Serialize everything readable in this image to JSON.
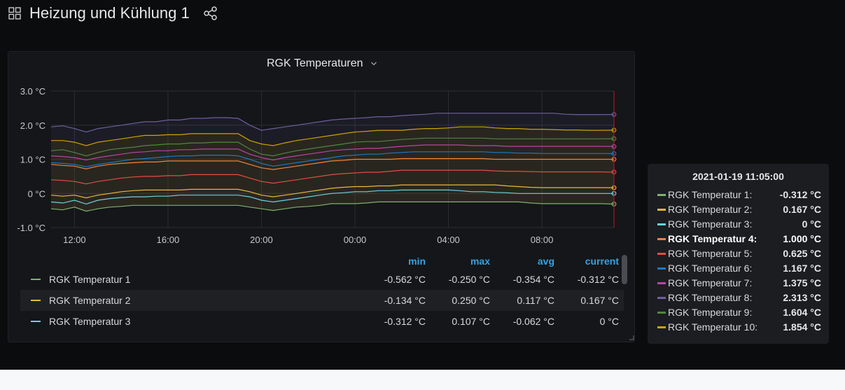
{
  "dashboard": {
    "title": "Heizung und Kühlung 1",
    "icons": {
      "grid": "dashboard-grid-icon",
      "share": "share-icon"
    }
  },
  "panel": {
    "title": "RGK Temperaturen",
    "caret_icon": "chevron-down-icon"
  },
  "chart_data": {
    "type": "line",
    "title": "RGK Temperaturen",
    "xlabel": "",
    "ylabel": "",
    "x_ticks": [
      "12:00",
      "16:00",
      "20:00",
      "00:00",
      "04:00",
      "08:00"
    ],
    "y_ticks": [
      "3.0 °C",
      "2.0 °C",
      "1.0 °C",
      "0 °C",
      "-1.0 °C"
    ],
    "ylim": [
      -1.0,
      3.0
    ],
    "x_hours": [
      -1,
      -0.5,
      0,
      0.5,
      1,
      1.5,
      2,
      2.5,
      3,
      3.5,
      4,
      4.5,
      5,
      5.5,
      6,
      6.5,
      7,
      7.5,
      8,
      8.5,
      9,
      9.5,
      10,
      10.5,
      11,
      11.5,
      12,
      12.5,
      13,
      13.5,
      14,
      14.5,
      15,
      15.5,
      16,
      16.5,
      17,
      17.5,
      18,
      18.5,
      19,
      19.5,
      20,
      20.5,
      21,
      21.5,
      22,
      22.5,
      23.083
    ],
    "grid": true,
    "legend": "bottom",
    "fill_between": [
      "RGK Temperatur 1",
      "RGK Temperatur 10"
    ],
    "series": [
      {
        "name": "RGK Temperatur 1",
        "color": "#7eb26d",
        "min": "-0.562 °C",
        "max": "-0.250 °C",
        "avg": "-0.354 °C",
        "current": "-0.312 °C",
        "values": [
          -0.45,
          -0.48,
          -0.4,
          -0.52,
          -0.45,
          -0.4,
          -0.38,
          -0.35,
          -0.35,
          -0.35,
          -0.35,
          -0.35,
          -0.35,
          -0.35,
          -0.35,
          -0.35,
          -0.35,
          -0.4,
          -0.45,
          -0.5,
          -0.45,
          -0.4,
          -0.38,
          -0.35,
          -0.3,
          -0.3,
          -0.3,
          -0.28,
          -0.25,
          -0.25,
          -0.25,
          -0.25,
          -0.25,
          -0.25,
          -0.25,
          -0.25,
          -0.25,
          -0.25,
          -0.25,
          -0.25,
          -0.25,
          -0.28,
          -0.3,
          -0.3,
          -0.3,
          -0.3,
          -0.3,
          -0.3,
          -0.312
        ]
      },
      {
        "name": "RGK Temperatur 2",
        "color": "#eab839",
        "min": "-0.134 °C",
        "max": "0.250 °C",
        "avg": "0.117 °C",
        "current": "0.167 °C",
        "values": [
          -0.05,
          -0.08,
          -0.05,
          -0.13,
          -0.05,
          0.0,
          0.05,
          0.08,
          0.1,
          0.1,
          0.1,
          0.1,
          0.12,
          0.12,
          0.12,
          0.12,
          0.12,
          0.05,
          -0.05,
          -0.1,
          -0.05,
          0.0,
          0.05,
          0.1,
          0.15,
          0.18,
          0.2,
          0.2,
          0.22,
          0.22,
          0.25,
          0.25,
          0.25,
          0.25,
          0.25,
          0.25,
          0.25,
          0.25,
          0.25,
          0.22,
          0.2,
          0.18,
          0.17,
          0.17,
          0.17,
          0.17,
          0.17,
          0.17,
          0.167
        ]
      },
      {
        "name": "RGK Temperatur 3",
        "color": "#6ed0e0",
        "min": "-0.312 °C",
        "max": "0.107 °C",
        "avg": "-0.062 °C",
        "current": "0 °C",
        "values": [
          -0.25,
          -0.28,
          -0.2,
          -0.31,
          -0.2,
          -0.15,
          -0.12,
          -0.1,
          -0.1,
          -0.08,
          -0.08,
          -0.05,
          -0.05,
          -0.05,
          -0.05,
          -0.05,
          -0.05,
          -0.1,
          -0.2,
          -0.25,
          -0.2,
          -0.15,
          -0.1,
          -0.05,
          0.0,
          0.02,
          0.05,
          0.05,
          0.08,
          0.08,
          0.1,
          0.1,
          0.1,
          0.1,
          0.1,
          0.08,
          0.05,
          0.05,
          0.03,
          0.02,
          0.0,
          0.0,
          0.0,
          0.0,
          0.0,
          0.0,
          0.0,
          0.0,
          0.0
        ]
      },
      {
        "name": "RGK Temperatur 4",
        "color": "#ef843c",
        "current": "1.000 °C",
        "values": [
          0.85,
          0.82,
          0.8,
          0.72,
          0.8,
          0.85,
          0.88,
          0.9,
          0.92,
          0.92,
          0.95,
          0.95,
          0.95,
          0.95,
          0.95,
          0.95,
          0.95,
          0.85,
          0.75,
          0.7,
          0.75,
          0.8,
          0.85,
          0.9,
          0.95,
          0.97,
          1.0,
          1.0,
          1.0,
          1.0,
          1.02,
          1.02,
          1.02,
          1.02,
          1.02,
          1.02,
          1.02,
          1.02,
          1.0,
          1.0,
          1.0,
          1.0,
          1.0,
          1.0,
          1.0,
          1.0,
          1.0,
          1.0,
          1.0
        ]
      },
      {
        "name": "RGK Temperatur 5",
        "color": "#e24d42",
        "current": "0.625 °C",
        "values": [
          0.4,
          0.38,
          0.35,
          0.28,
          0.35,
          0.4,
          0.45,
          0.48,
          0.5,
          0.5,
          0.52,
          0.52,
          0.55,
          0.55,
          0.55,
          0.55,
          0.55,
          0.45,
          0.35,
          0.3,
          0.35,
          0.4,
          0.45,
          0.5,
          0.55,
          0.58,
          0.6,
          0.62,
          0.62,
          0.65,
          0.68,
          0.68,
          0.68,
          0.68,
          0.68,
          0.68,
          0.68,
          0.68,
          0.66,
          0.65,
          0.65,
          0.64,
          0.63,
          0.63,
          0.63,
          0.63,
          0.63,
          0.63,
          0.625
        ]
      },
      {
        "name": "RGK Temperatur 6",
        "color": "#1f78c1",
        "current": "1.167 °C",
        "values": [
          0.9,
          0.88,
          0.85,
          0.78,
          0.85,
          0.9,
          0.95,
          1.0,
          1.02,
          1.05,
          1.08,
          1.1,
          1.1,
          1.12,
          1.12,
          1.12,
          1.1,
          1.0,
          0.88,
          0.8,
          0.85,
          0.9,
          0.95,
          1.0,
          1.05,
          1.1,
          1.12,
          1.15,
          1.15,
          1.18,
          1.2,
          1.22,
          1.22,
          1.22,
          1.22,
          1.22,
          1.22,
          1.22,
          1.2,
          1.2,
          1.18,
          1.18,
          1.17,
          1.17,
          1.17,
          1.17,
          1.17,
          1.17,
          1.167
        ]
      },
      {
        "name": "RGK Temperatur 7",
        "color": "#ba43a9",
        "current": "1.375 °C",
        "values": [
          1.1,
          1.08,
          1.05,
          0.98,
          1.05,
          1.1,
          1.15,
          1.2,
          1.22,
          1.25,
          1.25,
          1.28,
          1.28,
          1.3,
          1.3,
          1.3,
          1.3,
          1.15,
          1.05,
          0.98,
          1.05,
          1.1,
          1.15,
          1.2,
          1.25,
          1.28,
          1.3,
          1.32,
          1.32,
          1.35,
          1.38,
          1.4,
          1.42,
          1.42,
          1.42,
          1.42,
          1.4,
          1.4,
          1.4,
          1.38,
          1.38,
          1.38,
          1.38,
          1.38,
          1.38,
          1.38,
          1.38,
          1.38,
          1.375
        ]
      },
      {
        "name": "RGK Temperatur 8",
        "color": "#705da0",
        "current": "2.313 °C",
        "values": [
          1.95,
          1.98,
          1.9,
          1.8,
          1.9,
          1.95,
          2.0,
          2.05,
          2.1,
          2.1,
          2.15,
          2.15,
          2.2,
          2.2,
          2.22,
          2.22,
          2.2,
          2.0,
          1.85,
          1.9,
          1.95,
          2.0,
          2.05,
          2.1,
          2.15,
          2.18,
          2.2,
          2.22,
          2.25,
          2.25,
          2.28,
          2.3,
          2.32,
          2.35,
          2.35,
          2.35,
          2.35,
          2.35,
          2.35,
          2.35,
          2.35,
          2.35,
          2.35,
          2.35,
          2.32,
          2.31,
          2.31,
          2.31,
          2.313
        ]
      },
      {
        "name": "RGK Temperatur 9",
        "color": "#508642",
        "current": "1.604 °C",
        "values": [
          1.25,
          1.28,
          1.2,
          1.1,
          1.2,
          1.28,
          1.32,
          1.35,
          1.4,
          1.42,
          1.45,
          1.45,
          1.48,
          1.48,
          1.5,
          1.5,
          1.5,
          1.3,
          1.15,
          1.1,
          1.18,
          1.25,
          1.3,
          1.35,
          1.4,
          1.45,
          1.5,
          1.52,
          1.52,
          1.55,
          1.58,
          1.6,
          1.62,
          1.62,
          1.62,
          1.62,
          1.62,
          1.62,
          1.6,
          1.6,
          1.6,
          1.6,
          1.6,
          1.6,
          1.6,
          1.6,
          1.6,
          1.6,
          1.604
        ]
      },
      {
        "name": "RGK Temperatur 10",
        "color": "#cca300",
        "current": "1.854 °C",
        "values": [
          1.55,
          1.55,
          1.5,
          1.4,
          1.5,
          1.55,
          1.6,
          1.65,
          1.7,
          1.7,
          1.72,
          1.72,
          1.75,
          1.75,
          1.75,
          1.75,
          1.75,
          1.55,
          1.45,
          1.4,
          1.48,
          1.55,
          1.6,
          1.65,
          1.7,
          1.75,
          1.8,
          1.82,
          1.85,
          1.85,
          1.85,
          1.88,
          1.9,
          1.9,
          1.92,
          1.95,
          1.95,
          1.95,
          1.92,
          1.9,
          1.9,
          1.88,
          1.88,
          1.87,
          1.86,
          1.86,
          1.85,
          1.85,
          1.854
        ]
      }
    ]
  },
  "legend": {
    "columns": [
      "min",
      "max",
      "avg",
      "current"
    ]
  },
  "tooltip": {
    "time": "2021-01-19 11:05:00",
    "highlight_index": 3,
    "rows": [
      {
        "label": "RGK Temperatur 1:",
        "value": "-0.312 °C",
        "color": "#7eb26d"
      },
      {
        "label": "RGK Temperatur 2:",
        "value": "0.167 °C",
        "color": "#eab839"
      },
      {
        "label": "RGK Temperatur 3:",
        "value": "0 °C",
        "color": "#6ed0e0"
      },
      {
        "label": "RGK Temperatur 4:",
        "value": "1.000 °C",
        "color": "#ef843c"
      },
      {
        "label": "RGK Temperatur 5:",
        "value": "0.625 °C",
        "color": "#e24d42"
      },
      {
        "label": "RGK Temperatur 6:",
        "value": "1.167 °C",
        "color": "#1f78c1"
      },
      {
        "label": "RGK Temperatur 7:",
        "value": "1.375 °C",
        "color": "#ba43a9"
      },
      {
        "label": "RGK Temperatur 8:",
        "value": "2.313 °C",
        "color": "#705da0"
      },
      {
        "label": "RGK Temperatur 9:",
        "value": "1.604 °C",
        "color": "#508642"
      },
      {
        "label": "RGK Temperatur 10:",
        "value": "1.854 °C",
        "color": "#cca300"
      }
    ]
  }
}
